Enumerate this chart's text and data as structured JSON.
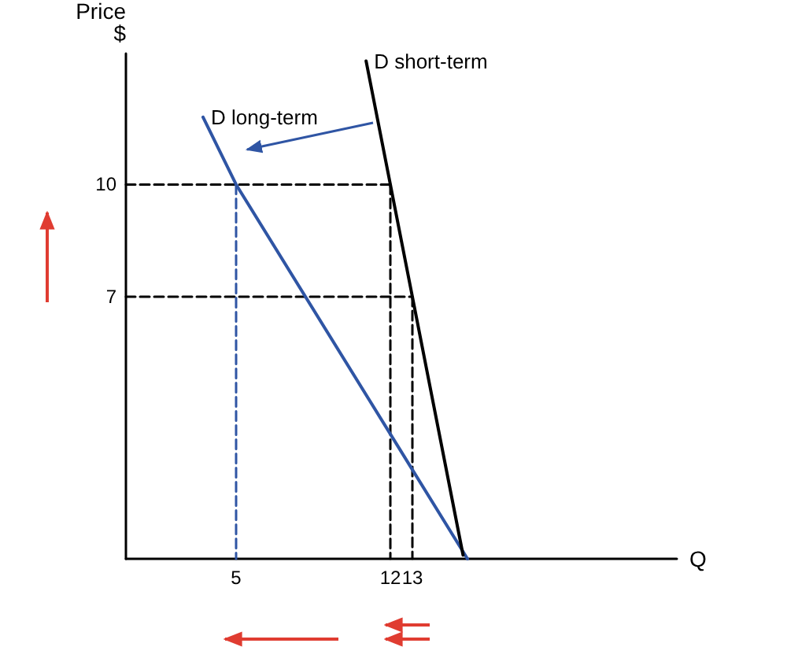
{
  "chart_data": {
    "type": "line",
    "xlabel": "Q",
    "ylabel": "Price\n$",
    "xlim": [
      0,
      25
    ],
    "xticks": [
      5,
      12,
      13
    ],
    "ylim": [
      0,
      13.5
    ],
    "yticks": [
      7,
      10
    ],
    "series": [
      {
        "name": "D long-term",
        "color": "#2f55a4",
        "x": [
          3.5,
          5,
          15.5
        ],
        "values": [
          11.8,
          10,
          0
        ],
        "line_style": "solid"
      },
      {
        "name": "D short-term",
        "color": "#000000",
        "x": [
          10.9,
          12,
          13,
          15.3
        ],
        "values": [
          13.3,
          10,
          7,
          0.1
        ],
        "line_style": "solid"
      },
      {
        "color": "#000000",
        "x": [
          0,
          12
        ],
        "values": [
          10,
          10
        ],
        "line_style": "dashed"
      },
      {
        "color": "#000000",
        "x": [
          0,
          13
        ],
        "values": [
          7,
          7
        ],
        "line_style": "dashed"
      },
      {
        "color": "#000000",
        "x": [
          12,
          12
        ],
        "values": [
          10,
          0
        ],
        "line_style": "dashed"
      },
      {
        "color": "#000000",
        "x": [
          13,
          13
        ],
        "values": [
          7,
          0
        ],
        "line_style": "dashed"
      },
      {
        "color": "#2f55a4",
        "x": [
          5,
          5
        ],
        "values": [
          10,
          0
        ],
        "line_style": "dashed"
      }
    ],
    "marker": "none",
    "grid": false,
    "legend": false
  }
}
